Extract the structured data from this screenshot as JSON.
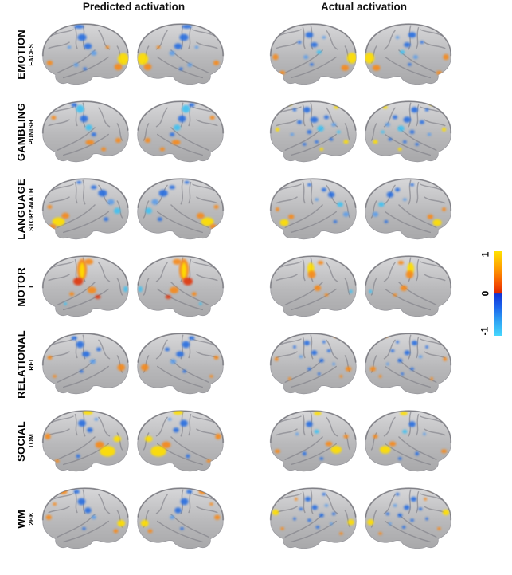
{
  "figure": {
    "headers": {
      "predicted": "Predicted activation",
      "actual": "Actual activation"
    },
    "description": "Brain surface activation maps, predicted vs actual, for seven task contrasts; lateral views of left and right hemispheres"
  },
  "colorbar": {
    "max_label": "1",
    "mid_label": "0",
    "min_label": "-1",
    "stops_top_to_bottom": [
      "#ffe200",
      "#ff9e00",
      "#f55300",
      "#e02800",
      "#1233d6",
      "#1b64ec",
      "#2fa5f4",
      "#46d7fd"
    ]
  },
  "palette": {
    "yellow": "#ffdf00",
    "orange": "#f68a1e",
    "red": "#e0390c",
    "blue": "#2a6fe0",
    "dblue": "#1d46cf",
    "cyan": "#3fc1f2",
    "lblue": "#5f9ee8",
    "brain": "#b9b9bb",
    "brain_light": "#d7d7d9",
    "sulcus": "#7b7b83",
    "rim": "#5e5e66"
  },
  "rows": [
    {
      "task": "EMOTION",
      "condition": "FACES",
      "pred": [
        [
          96,
          40,
          9,
          7,
          "blue"
        ],
        [
          108,
          58,
          8,
          6,
          "blue"
        ],
        [
          90,
          18,
          10,
          4,
          "blue"
        ],
        [
          120,
          72,
          6,
          5,
          "lblue"
        ],
        [
          84,
          96,
          5,
          4,
          "lblue"
        ],
        [
          102,
          104,
          4,
          3,
          "blue"
        ],
        [
          70,
          60,
          4,
          3,
          "lblue"
        ],
        [
          180,
          84,
          11,
          12,
          "yellow"
        ],
        [
          170,
          100,
          8,
          7,
          "orange"
        ],
        [
          160,
          16,
          8,
          4,
          "orange"
        ],
        [
          30,
          92,
          6,
          5,
          "orange"
        ],
        [
          148,
          60,
          4,
          3,
          "orange"
        ]
      ],
      "act": [
        [
          182,
          82,
          10,
          11,
          "yellow"
        ],
        [
          168,
          102,
          8,
          6,
          "orange"
        ],
        [
          155,
          14,
          9,
          4,
          "orange"
        ],
        [
          26,
          80,
          6,
          6,
          "orange"
        ],
        [
          40,
          112,
          6,
          4,
          "orange"
        ],
        [
          95,
          35,
          8,
          6,
          "blue"
        ],
        [
          105,
          55,
          7,
          5,
          "blue"
        ],
        [
          88,
          80,
          5,
          4,
          "lblue"
        ],
        [
          115,
          70,
          5,
          4,
          "cyan"
        ],
        [
          75,
          50,
          4,
          3,
          "blue"
        ],
        [
          100,
          95,
          4,
          3,
          "blue"
        ],
        [
          125,
          40,
          4,
          3,
          "lblue"
        ]
      ]
    },
    {
      "task": "GAMBLING",
      "condition": "PUNISH",
      "pred": [
        [
          92,
          28,
          8,
          8,
          "cyan"
        ],
        [
          100,
          48,
          8,
          7,
          "blue"
        ],
        [
          110,
          66,
          7,
          6,
          "cyan"
        ],
        [
          120,
          80,
          5,
          4,
          "blue"
        ],
        [
          80,
          20,
          6,
          4,
          "blue"
        ],
        [
          112,
          96,
          9,
          5,
          "orange"
        ],
        [
          170,
          92,
          6,
          5,
          "orange"
        ],
        [
          38,
          46,
          5,
          4,
          "orange"
        ],
        [
          140,
          110,
          5,
          4,
          "orange"
        ]
      ],
      "act": [
        [
          90,
          30,
          7,
          6,
          "blue"
        ],
        [
          105,
          50,
          8,
          6,
          "blue"
        ],
        [
          118,
          68,
          7,
          6,
          "cyan"
        ],
        [
          75,
          55,
          5,
          4,
          "blue"
        ],
        [
          95,
          75,
          5,
          4,
          "blue"
        ],
        [
          130,
          45,
          5,
          4,
          "blue"
        ],
        [
          145,
          60,
          5,
          4,
          "lblue"
        ],
        [
          85,
          100,
          4,
          3,
          "blue"
        ],
        [
          110,
          95,
          4,
          3,
          "blue"
        ],
        [
          60,
          80,
          4,
          3,
          "lblue"
        ],
        [
          140,
          90,
          4,
          3,
          "blue"
        ],
        [
          65,
          30,
          4,
          3,
          "blue"
        ],
        [
          155,
          75,
          4,
          3,
          "cyan"
        ],
        [
          55,
          18,
          5,
          3,
          "yellow"
        ],
        [
          150,
          25,
          5,
          3,
          "yellow"
        ],
        [
          30,
          70,
          4,
          4,
          "yellow"
        ],
        [
          170,
          95,
          5,
          4,
          "yellow"
        ],
        [
          120,
          110,
          4,
          3,
          "yellow"
        ]
      ]
    },
    {
      "task": "LANGUAGE",
      "condition": "STORY-MATH",
      "pred": [
        [
          48,
          100,
          13,
          9,
          "yellow"
        ],
        [
          62,
          88,
          8,
          6,
          "orange"
        ],
        [
          36,
          110,
          7,
          5,
          "orange"
        ],
        [
          30,
          70,
          5,
          4,
          "orange"
        ],
        [
          138,
          42,
          9,
          7,
          "blue"
        ],
        [
          155,
          60,
          7,
          6,
          "lblue"
        ],
        [
          168,
          78,
          7,
          6,
          "cyan"
        ],
        [
          120,
          30,
          6,
          4,
          "blue"
        ],
        [
          145,
          95,
          5,
          4,
          "blue"
        ],
        [
          90,
          20,
          5,
          3,
          "blue"
        ]
      ],
      "act": [
        [
          44,
          102,
          9,
          7,
          "yellow"
        ],
        [
          58,
          90,
          6,
          5,
          "orange"
        ],
        [
          30,
          75,
          4,
          4,
          "orange"
        ],
        [
          140,
          45,
          7,
          6,
          "blue"
        ],
        [
          158,
          65,
          6,
          5,
          "cyan"
        ],
        [
          170,
          85,
          6,
          5,
          "lblue"
        ],
        [
          125,
          35,
          5,
          4,
          "blue"
        ],
        [
          148,
          100,
          4,
          3,
          "blue"
        ],
        [
          110,
          55,
          4,
          3,
          "lblue"
        ],
        [
          95,
          25,
          4,
          3,
          "blue"
        ]
      ]
    },
    {
      "task": "MOTOR",
      "condition": "T",
      "pred": [
        [
          96,
          40,
          10,
          22,
          "orange"
        ],
        [
          96,
          42,
          5,
          16,
          "yellow"
        ],
        [
          88,
          64,
          10,
          8,
          "red"
        ],
        [
          110,
          24,
          9,
          6,
          "orange"
        ],
        [
          116,
          82,
          9,
          7,
          "orange"
        ],
        [
          128,
          96,
          6,
          4,
          "red"
        ],
        [
          75,
          90,
          5,
          4,
          "orange"
        ],
        [
          185,
          80,
          4,
          6,
          "cyan"
        ],
        [
          62,
          110,
          3,
          3,
          "cyan"
        ]
      ],
      "act": [
        [
          98,
          38,
          7,
          12,
          "yellow"
        ],
        [
          100,
          50,
          8,
          8,
          "orange"
        ],
        [
          112,
          78,
          7,
          6,
          "orange"
        ],
        [
          118,
          26,
          6,
          4,
          "orange"
        ],
        [
          130,
          92,
          4,
          3,
          "orange"
        ],
        [
          180,
          85,
          3,
          4,
          "cyan"
        ]
      ]
    },
    {
      "task": "RELATIONAL",
      "condition": "REL",
      "pred": [
        [
          92,
          35,
          8,
          7,
          "blue"
        ],
        [
          104,
          55,
          8,
          6,
          "blue"
        ],
        [
          118,
          70,
          6,
          5,
          "lblue"
        ],
        [
          80,
          22,
          6,
          4,
          "blue"
        ],
        [
          130,
          45,
          5,
          4,
          "blue"
        ],
        [
          95,
          90,
          4,
          3,
          "blue"
        ],
        [
          176,
          82,
          8,
          7,
          "orange"
        ],
        [
          30,
          62,
          5,
          4,
          "orange"
        ],
        [
          150,
          16,
          6,
          3,
          "orange"
        ],
        [
          40,
          100,
          4,
          3,
          "orange"
        ]
      ],
      "act": [
        [
          90,
          32,
          6,
          5,
          "blue"
        ],
        [
          105,
          52,
          6,
          5,
          "blue"
        ],
        [
          120,
          68,
          5,
          4,
          "blue"
        ],
        [
          78,
          60,
          4,
          3,
          "lblue"
        ],
        [
          135,
          48,
          4,
          3,
          "blue"
        ],
        [
          95,
          85,
          4,
          3,
          "blue"
        ],
        [
          115,
          95,
          3,
          3,
          "blue"
        ],
        [
          65,
          40,
          3,
          3,
          "blue"
        ],
        [
          145,
          75,
          3,
          3,
          "lblue"
        ],
        [
          125,
          30,
          3,
          3,
          "blue"
        ],
        [
          175,
          85,
          6,
          5,
          "orange"
        ],
        [
          28,
          65,
          4,
          4,
          "orange"
        ],
        [
          148,
          18,
          4,
          3,
          "orange"
        ],
        [
          55,
          105,
          3,
          3,
          "orange"
        ],
        [
          160,
          100,
          3,
          3,
          "orange"
        ]
      ]
    },
    {
      "task": "SOCIAL",
      "condition": "TOM",
      "pred": [
        [
          148,
          95,
          16,
          11,
          "yellow"
        ],
        [
          132,
          82,
          9,
          7,
          "orange"
        ],
        [
          168,
          70,
          8,
          6,
          "yellow"
        ],
        [
          108,
          16,
          10,
          5,
          "yellow"
        ],
        [
          26,
          65,
          6,
          6,
          "orange"
        ],
        [
          45,
          115,
          5,
          3,
          "orange"
        ],
        [
          96,
          38,
          8,
          7,
          "blue"
        ],
        [
          112,
          52,
          6,
          5,
          "blue"
        ],
        [
          88,
          105,
          4,
          4,
          "blue"
        ],
        [
          125,
          30,
          4,
          3,
          "lblue"
        ]
      ],
      "act": [
        [
          150,
          92,
          11,
          8,
          "yellow"
        ],
        [
          135,
          80,
          7,
          5,
          "orange"
        ],
        [
          112,
          18,
          8,
          4,
          "yellow"
        ],
        [
          30,
          95,
          6,
          4,
          "orange"
        ],
        [
          170,
          65,
          5,
          4,
          "orange"
        ],
        [
          95,
          40,
          7,
          6,
          "blue"
        ],
        [
          110,
          55,
          5,
          4,
          "cyan"
        ],
        [
          85,
          100,
          4,
          4,
          "blue"
        ],
        [
          120,
          110,
          4,
          3,
          "blue"
        ],
        [
          70,
          60,
          3,
          3,
          "lblue"
        ]
      ]
    },
    {
      "task": "WM",
      "condition": "2BK",
      "pred": [
        [
          95,
          40,
          8,
          7,
          "blue"
        ],
        [
          108,
          58,
          7,
          6,
          "blue"
        ],
        [
          120,
          72,
          5,
          4,
          "lblue"
        ],
        [
          85,
          20,
          6,
          4,
          "blue"
        ],
        [
          100,
          95,
          4,
          3,
          "blue"
        ],
        [
          58,
          20,
          8,
          5,
          "orange"
        ],
        [
          176,
          84,
          8,
          7,
          "yellow"
        ],
        [
          28,
          72,
          6,
          5,
          "orange"
        ],
        [
          165,
          100,
          5,
          4,
          "orange"
        ],
        [
          40,
          45,
          4,
          3,
          "orange"
        ]
      ],
      "act": [
        [
          92,
          35,
          6,
          5,
          "blue"
        ],
        [
          106,
          52,
          6,
          5,
          "blue"
        ],
        [
          120,
          68,
          5,
          4,
          "blue"
        ],
        [
          78,
          55,
          4,
          3,
          "blue"
        ],
        [
          95,
          78,
          4,
          3,
          "blue"
        ],
        [
          130,
          48,
          4,
          3,
          "lblue"
        ],
        [
          112,
          92,
          4,
          3,
          "blue"
        ],
        [
          145,
          65,
          4,
          3,
          "blue"
        ],
        [
          65,
          75,
          3,
          3,
          "blue"
        ],
        [
          140,
          85,
          3,
          3,
          "lblue"
        ],
        [
          125,
          25,
          4,
          3,
          "blue"
        ],
        [
          26,
          62,
          7,
          6,
          "yellow"
        ],
        [
          180,
          82,
          7,
          6,
          "yellow"
        ],
        [
          55,
          16,
          6,
          3,
          "orange"
        ],
        [
          40,
          95,
          4,
          3,
          "orange"
        ],
        [
          160,
          105,
          4,
          3,
          "orange"
        ],
        [
          68,
          35,
          3,
          3,
          "orange"
        ]
      ]
    }
  ]
}
